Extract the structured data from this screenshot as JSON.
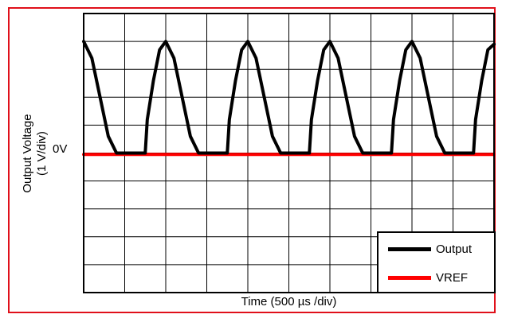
{
  "chart_data": {
    "type": "line",
    "title": "",
    "xlabel": "Time (500 µs /div)",
    "ylabel": "Output Voltage",
    "ylabel_scale": "(1 V/div)",
    "zero_label": "0V",
    "grid": true,
    "legend_position": "bottom-right",
    "divisions": {
      "x": 10,
      "y": 10
    },
    "xlim": [
      0,
      10
    ],
    "ylim": [
      -5,
      5
    ],
    "series": [
      {
        "name": "Output",
        "color": "#000000",
        "points": [
          [
            0.0,
            4.0
          ],
          [
            0.2,
            3.4
          ],
          [
            0.4,
            2.0
          ],
          [
            0.6,
            0.6
          ],
          [
            0.8,
            0.0
          ],
          [
            1.5,
            0.0
          ],
          [
            1.55,
            1.2
          ],
          [
            1.7,
            2.6
          ],
          [
            1.85,
            3.7
          ],
          [
            2.0,
            4.0
          ],
          [
            2.2,
            3.4
          ],
          [
            2.4,
            2.0
          ],
          [
            2.6,
            0.6
          ],
          [
            2.8,
            0.0
          ],
          [
            3.5,
            0.0
          ],
          [
            3.55,
            1.2
          ],
          [
            3.7,
            2.6
          ],
          [
            3.85,
            3.7
          ],
          [
            4.0,
            4.0
          ],
          [
            4.2,
            3.4
          ],
          [
            4.4,
            2.0
          ],
          [
            4.6,
            0.6
          ],
          [
            4.8,
            0.0
          ],
          [
            5.5,
            0.0
          ],
          [
            5.55,
            1.2
          ],
          [
            5.7,
            2.6
          ],
          [
            5.85,
            3.7
          ],
          [
            6.0,
            4.0
          ],
          [
            6.2,
            3.4
          ],
          [
            6.4,
            2.0
          ],
          [
            6.6,
            0.6
          ],
          [
            6.8,
            0.0
          ],
          [
            7.5,
            0.0
          ],
          [
            7.55,
            1.2
          ],
          [
            7.7,
            2.6
          ],
          [
            7.85,
            3.7
          ],
          [
            8.0,
            4.0
          ],
          [
            8.2,
            3.4
          ],
          [
            8.4,
            2.0
          ],
          [
            8.6,
            0.6
          ],
          [
            8.8,
            0.0
          ],
          [
            9.5,
            0.0
          ],
          [
            9.55,
            1.2
          ],
          [
            9.7,
            2.6
          ],
          [
            9.85,
            3.7
          ],
          [
            10.0,
            3.9
          ]
        ]
      },
      {
        "name": "VREF",
        "color": "#ff0000",
        "points": [
          [
            0.0,
            -0.05
          ],
          [
            10.0,
            -0.05
          ]
        ]
      }
    ]
  }
}
